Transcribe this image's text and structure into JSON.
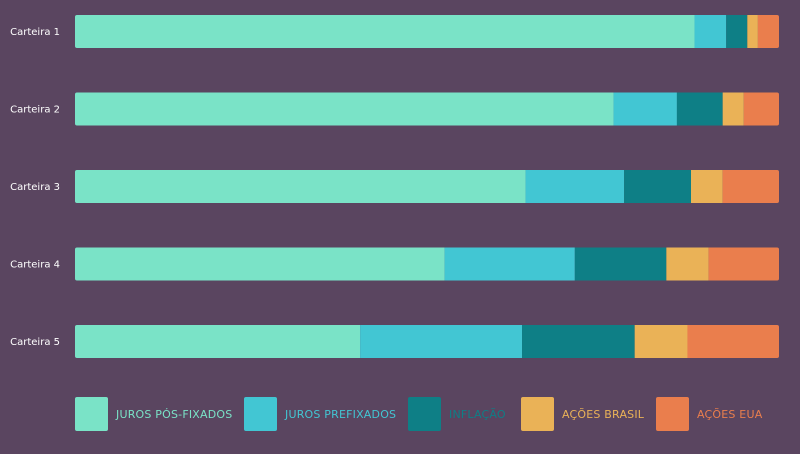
{
  "chart_data": {
    "type": "bar",
    "orientation": "horizontal",
    "stacked": true,
    "normalized": true,
    "categories": [
      "Carteira 1",
      "Carteira 2",
      "Carteira 3",
      "Carteira 4",
      "Carteira 5"
    ],
    "series": [
      {
        "name": "JUROS PÓS-FIXADOS",
        "color": "#7ae3c7",
        "label_color": "#7ae3c7",
        "values": [
          88,
          76.5,
          64,
          52.5,
          40.5
        ]
      },
      {
        "name": "JUROS PREFIXADOS",
        "color": "#42c6d3",
        "label_color": "#42c6d3",
        "values": [
          4.5,
          9,
          14,
          18.5,
          23
        ]
      },
      {
        "name": "INFLAÇÃO",
        "color": "#0e7f86",
        "label_color": "#0e7f86",
        "values": [
          3,
          6.5,
          9.5,
          13,
          16
        ]
      },
      {
        "name": "AÇÕES BRASIL",
        "color": "#eab257",
        "label_color": "#eab257",
        "values": [
          1.5,
          3,
          4.5,
          6,
          7.5
        ]
      },
      {
        "name": "AÇÕES EUA",
        "color": "#ea7e4d",
        "label_color": "#ea7e4d",
        "values": [
          3,
          5,
          8,
          10,
          13
        ]
      }
    ],
    "xlim": [
      0,
      100
    ],
    "grid": false,
    "legend_position": "bottom"
  }
}
